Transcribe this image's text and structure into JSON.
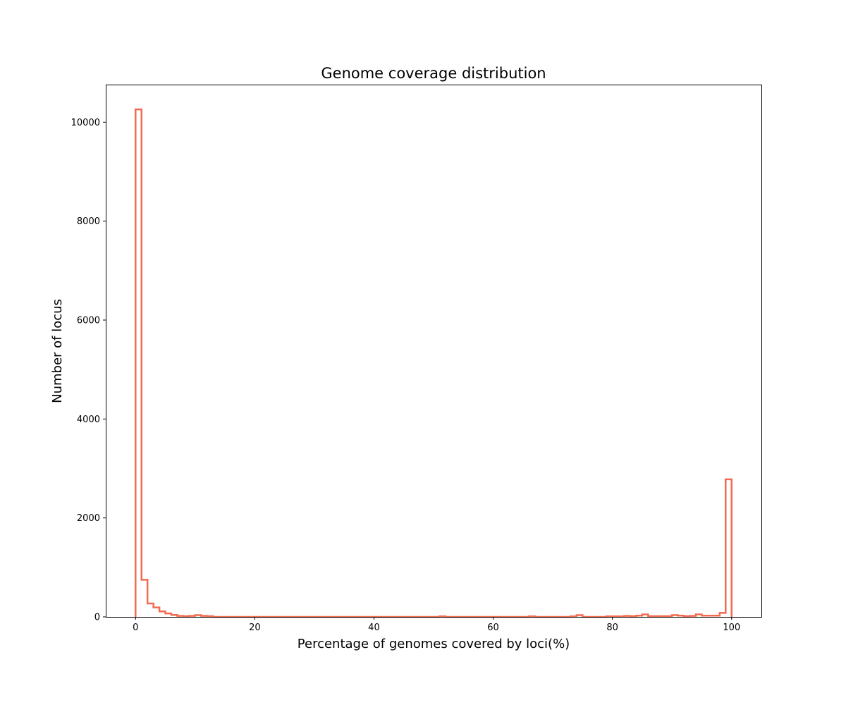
{
  "chart_data": {
    "type": "histogram",
    "title": "Genome coverage distribution",
    "xlabel": "Percentage of genomes covered by loci(%)",
    "ylabel": "Number of locus",
    "xlim": [
      -5,
      105
    ],
    "ylim": [
      0,
      10760
    ],
    "xticks": [
      0,
      20,
      40,
      60,
      80,
      100
    ],
    "yticks": [
      0,
      2000,
      4000,
      6000,
      8000,
      10000
    ],
    "grid": false,
    "histtype": "step",
    "series_color": "#f26b50",
    "bin_edges": [
      0,
      1,
      2,
      3,
      4,
      5,
      6,
      7,
      8,
      9,
      10,
      11,
      12,
      13,
      14,
      15,
      16,
      17,
      18,
      19,
      20,
      21,
      22,
      23,
      24,
      25,
      26,
      27,
      28,
      29,
      30,
      31,
      32,
      33,
      34,
      35,
      36,
      37,
      38,
      39,
      40,
      41,
      42,
      43,
      44,
      45,
      46,
      47,
      48,
      49,
      50,
      51,
      52,
      53,
      54,
      55,
      56,
      57,
      58,
      59,
      60,
      61,
      62,
      63,
      64,
      65,
      66,
      67,
      68,
      69,
      70,
      71,
      72,
      73,
      74,
      75,
      76,
      77,
      78,
      79,
      80,
      81,
      82,
      83,
      84,
      85,
      86,
      87,
      88,
      89,
      90,
      91,
      92,
      93,
      94,
      95,
      96,
      97,
      98,
      99,
      100
    ],
    "counts": [
      10260,
      750,
      270,
      190,
      110,
      70,
      40,
      20,
      15,
      20,
      35,
      20,
      15,
      0,
      0,
      0,
      0,
      0,
      0,
      0,
      0,
      0,
      0,
      0,
      0,
      0,
      0,
      0,
      0,
      0,
      0,
      0,
      0,
      0,
      0,
      0,
      0,
      0,
      0,
      0,
      0,
      0,
      0,
      0,
      0,
      0,
      0,
      0,
      0,
      0,
      0,
      10,
      0,
      0,
      0,
      0,
      0,
      0,
      0,
      0,
      0,
      0,
      0,
      0,
      0,
      0,
      10,
      0,
      0,
      0,
      0,
      0,
      0,
      10,
      35,
      0,
      0,
      0,
      0,
      10,
      10,
      10,
      20,
      15,
      25,
      50,
      15,
      15,
      15,
      15,
      35,
      25,
      15,
      20,
      50,
      25,
      25,
      25,
      80,
      2780
    ]
  }
}
